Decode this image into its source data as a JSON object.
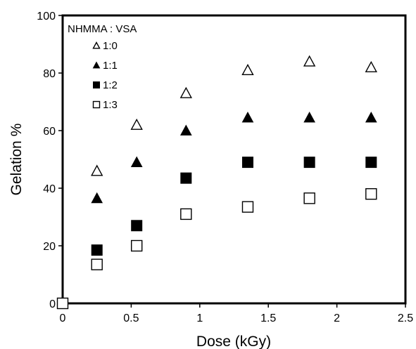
{
  "chart_data": {
    "type": "scatter",
    "xlabel": "Dose (kGy)",
    "ylabel": "Gelation %",
    "xlim": [
      0,
      2.5
    ],
    "ylim": [
      0,
      100
    ],
    "x_ticks": [
      "0",
      "0.5",
      "1",
      "1.5",
      "2",
      "2.5"
    ],
    "y_ticks": [
      "0",
      "20",
      "40",
      "60",
      "80",
      "100"
    ],
    "grid": false,
    "legend": {
      "title": "NHMMA : VSA",
      "placement": "top-left"
    },
    "series": [
      {
        "name": "1:0",
        "marker": "triangle-open",
        "color": "#000000",
        "points": [
          [
            0.25,
            46
          ],
          [
            0.54,
            62
          ],
          [
            0.9,
            73
          ],
          [
            1.35,
            81
          ],
          [
            1.8,
            84
          ],
          [
            2.25,
            82
          ]
        ]
      },
      {
        "name": "1:1",
        "marker": "triangle-filled",
        "color": "#000000",
        "points": [
          [
            0.25,
            36.5
          ],
          [
            0.54,
            49
          ],
          [
            0.9,
            60
          ],
          [
            1.35,
            64.5
          ],
          [
            1.8,
            64.5
          ],
          [
            2.25,
            64.5
          ]
        ]
      },
      {
        "name": "1:2",
        "marker": "square-filled",
        "color": "#000000",
        "points": [
          [
            0.25,
            18.5
          ],
          [
            0.54,
            27
          ],
          [
            0.9,
            43.5
          ],
          [
            1.35,
            49
          ],
          [
            1.8,
            49
          ],
          [
            2.25,
            49
          ]
        ]
      },
      {
        "name": "1:3",
        "marker": "square-open",
        "color": "#000000",
        "points": [
          [
            0,
            0
          ],
          [
            0.25,
            13.5
          ],
          [
            0.54,
            20
          ],
          [
            0.9,
            31
          ],
          [
            1.35,
            33.5
          ],
          [
            1.8,
            36.5
          ],
          [
            2.25,
            38
          ]
        ]
      }
    ]
  }
}
